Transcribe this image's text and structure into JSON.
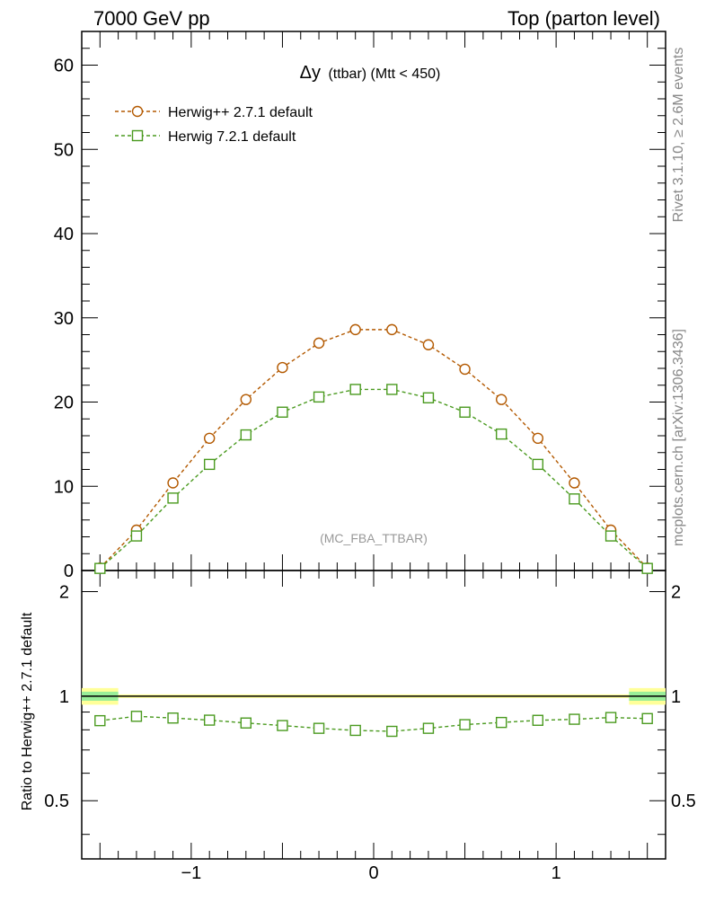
{
  "header": {
    "left": "7000 GeV pp",
    "right": "Top (parton level)"
  },
  "side_labels": {
    "rivet": "Rivet 3.1.10, ≥ 2.6M events",
    "mcplots": "mcplots.cern.ch [arXiv:1306.3436]"
  },
  "watermark": "(MC_FBA_TTBAR)",
  "colors": {
    "herwigpp": "#b35900",
    "herwig7": "#4a9a1f",
    "band_yellow": "#ffff99",
    "band_green": "#99ee99"
  },
  "chart_data": [
    {
      "type": "line",
      "title": "Δy (ttbar) (Mtt < 450)",
      "title_main": "Δy",
      "title_sub": "(ttbar) (Mtt < 450)",
      "xlim": [
        -1.6,
        1.6
      ],
      "ylim": [
        0,
        64
      ],
      "yticks": [
        0,
        10,
        20,
        30,
        40,
        50,
        60
      ],
      "ytick_labels": [
        "0",
        "10",
        "20",
        "30",
        "40",
        "50",
        "60"
      ],
      "legend_position": "top-left",
      "x": [
        -1.5,
        -1.3,
        -1.1,
        -0.9,
        -0.7,
        -0.5,
        -0.3,
        -0.1,
        0.1,
        0.3,
        0.5,
        0.7,
        0.9,
        1.1,
        1.3,
        1.5
      ],
      "series": [
        {
          "name": "Herwig++ 2.7.1 default",
          "marker": "circle",
          "values": [
            0.3,
            4.8,
            10.4,
            15.7,
            20.3,
            24.1,
            27.0,
            28.6,
            28.6,
            26.8,
            23.9,
            20.3,
            15.7,
            10.4,
            4.8,
            0.3
          ]
        },
        {
          "name": "Herwig 7.2.1 default",
          "marker": "square",
          "values": [
            0.25,
            4.1,
            8.6,
            12.6,
            16.1,
            18.8,
            20.6,
            21.5,
            21.5,
            20.5,
            18.8,
            16.2,
            12.6,
            8.5,
            4.1,
            0.25
          ]
        }
      ]
    },
    {
      "type": "line",
      "ylabel": "Ratio to Herwig++ 2.7.1 default",
      "xlim": [
        -1.6,
        1.6
      ],
      "ylim": [
        0.34,
        2.3
      ],
      "xticks": [
        -1,
        0,
        1
      ],
      "xtick_labels": [
        "−1",
        "0",
        "1"
      ],
      "yticks": [
        0.5,
        1,
        2
      ],
      "ytick_labels": [
        "0.5",
        "1",
        "2"
      ],
      "reference_value": 1,
      "x": [
        -1.5,
        -1.3,
        -1.1,
        -0.9,
        -0.7,
        -0.5,
        -0.3,
        -0.1,
        0.1,
        0.3,
        0.5,
        0.7,
        0.9,
        1.1,
        1.3,
        1.5
      ],
      "band_x": [
        -1.6,
        -1.4,
        1.4,
        1.6
      ],
      "series": [
        {
          "name": "Herwig 7.2.1 default",
          "marker": "square",
          "values": [
            0.85,
            0.875,
            0.865,
            0.853,
            0.837,
            0.823,
            0.808,
            0.797,
            0.792,
            0.808,
            0.828,
            0.84,
            0.852,
            0.858,
            0.868,
            0.862
          ]
        }
      ]
    }
  ]
}
